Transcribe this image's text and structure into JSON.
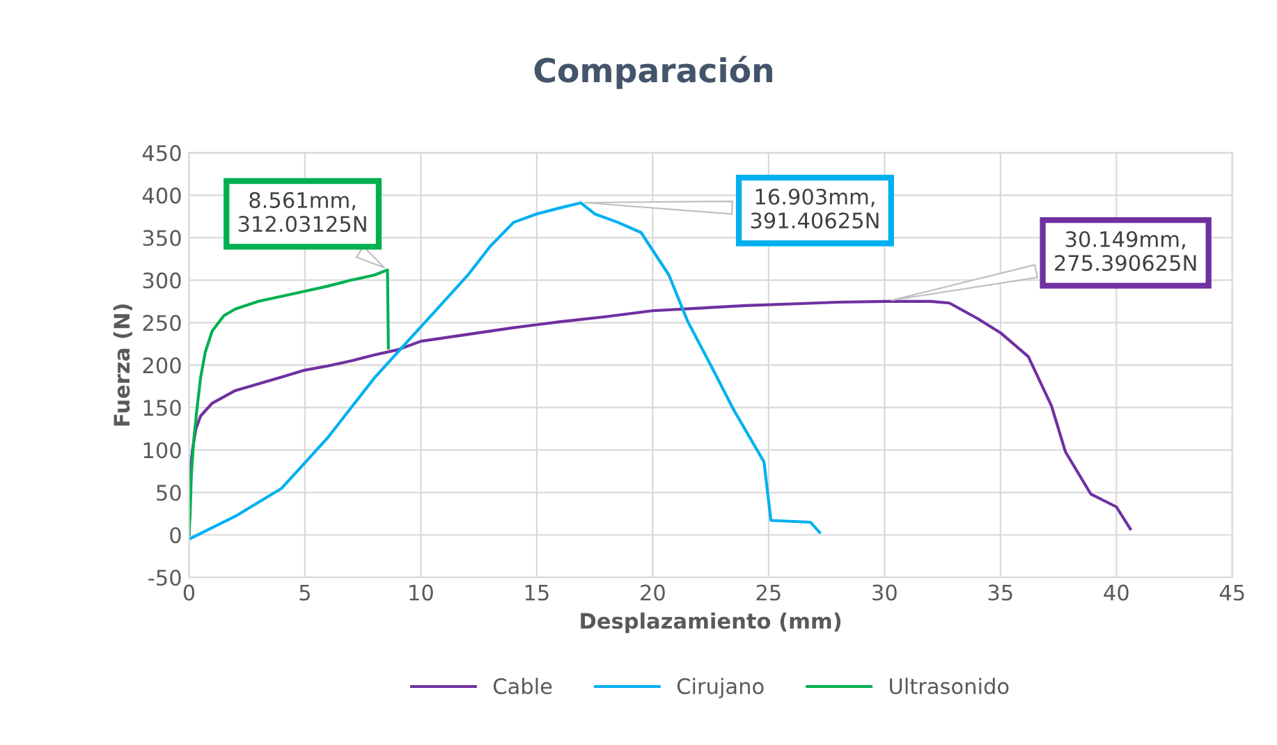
{
  "chart_data": {
    "type": "line",
    "title": "Comparación",
    "xlabel": "Desplazamiento (mm)",
    "ylabel": "Fuerza (N)",
    "xlim": [
      0,
      45
    ],
    "xticks": [
      0,
      5,
      10,
      15,
      20,
      25,
      30,
      35,
      40,
      45
    ],
    "ylim": [
      -50,
      450
    ],
    "yticks": [
      -50,
      0,
      50,
      100,
      150,
      200,
      250,
      300,
      350,
      400,
      450
    ],
    "grid": true,
    "legend": "bottom",
    "marker": "none",
    "line_style": "solid",
    "series": [
      {
        "name": "Cable",
        "color": "#7030a0",
        "x": [
          0,
          0.05,
          0.15,
          0.3,
          0.5,
          1,
          2,
          3,
          4,
          5,
          6,
          7,
          8,
          9,
          10,
          12,
          14,
          16,
          18,
          20,
          22,
          24,
          26,
          28,
          30.149,
          32,
          32.8,
          34,
          35,
          36.2,
          37.2,
          37.8,
          38.9,
          40,
          40.6
        ],
        "values": [
          0,
          75,
          100,
          125,
          140,
          155,
          170,
          178,
          186,
          194,
          199,
          205,
          212,
          218,
          228,
          236,
          244,
          251,
          257,
          264,
          267,
          270,
          272,
          274,
          275,
          275,
          273,
          255,
          238,
          210,
          152,
          98,
          48,
          33,
          7
        ]
      },
      {
        "name": "Cirujano",
        "color": "#00b0f0",
        "x": [
          0,
          2,
          4,
          5,
          6,
          7,
          8,
          9,
          10,
          11,
          12,
          13,
          14,
          15,
          16,
          16.903,
          17.5,
          18.5,
          19.5,
          20.7,
          21.5,
          22.5,
          23.5,
          24.8,
          25.1,
          26.8,
          27.2
        ],
        "values": [
          -5,
          22,
          55,
          85,
          115,
          150,
          185,
          215,
          245,
          275,
          305,
          340,
          368,
          378,
          385,
          391,
          378,
          368,
          356,
          306,
          252,
          200,
          147,
          86,
          17,
          15,
          3
        ]
      },
      {
        "name": "Ultrasonido",
        "color": "#00b050",
        "x": [
          0,
          0.05,
          0.1,
          0.2,
          0.35,
          0.5,
          0.7,
          1,
          1.5,
          2,
          3,
          4,
          5,
          6,
          7,
          8,
          8.561,
          8.6
        ],
        "values": [
          0,
          25,
          70,
          110,
          150,
          185,
          215,
          240,
          258,
          266,
          275,
          281,
          287,
          293,
          300,
          306,
          312,
          220
        ]
      }
    ],
    "annotations": [
      {
        "text": "8.561mm,\n312.03125N",
        "x": 8.561,
        "y": 312.03125
      },
      {
        "text": "16.903mm,\n391.40625N",
        "x": 16.903,
        "y": 391.40625
      },
      {
        "text": "30.149mm,\n275.390625N",
        "x": 30.149,
        "y": 275.390625
      }
    ]
  }
}
